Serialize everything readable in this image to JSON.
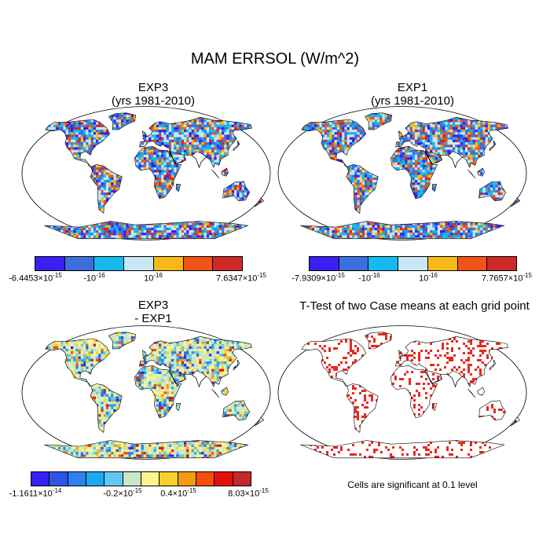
{
  "title": "MAM ERRSOL (W/m^2)",
  "panels": [
    {
      "title_line1": "EXP3",
      "title_line2": "(yrs 1981-2010)",
      "colors": [
        "#3a1ff3",
        "#3b6fdc",
        "#15b9ee",
        "#c9e6f5",
        "#f7b91a",
        "#f1541a",
        "#cc2a2a"
      ],
      "tick_left": {
        "mant": "-6.4453",
        "exp": "-15"
      },
      "tick_m1": {
        "mant": "-10",
        "exp": "-16"
      },
      "tick_m2": {
        "mant": "10",
        "exp": "-16"
      },
      "tick_right": {
        "mant": "7.6347",
        "exp": "-15"
      }
    },
    {
      "title_line1": "EXP1",
      "title_line2": "(yrs 1981-2010)",
      "colors": [
        "#3a1ff3",
        "#3b6fdc",
        "#15b9ee",
        "#c9e6f5",
        "#f7b91a",
        "#f1541a",
        "#cc2a2a"
      ],
      "tick_left": {
        "mant": "-7.9309",
        "exp": "-15"
      },
      "tick_m1": {
        "mant": "-10",
        "exp": "-16"
      },
      "tick_m2": {
        "mant": "10",
        "exp": "-16"
      },
      "tick_right": {
        "mant": "7.7657",
        "exp": "-15"
      }
    },
    {
      "title_line1": "EXP3",
      "title_line2": "- EXP1",
      "colors": [
        "#3a1ff3",
        "#2d55e4",
        "#2a82f0",
        "#1aa8f0",
        "#62c8f3",
        "#c7e9c8",
        "#fff48c",
        "#f8cf2c",
        "#f59b13",
        "#f24f0c",
        "#e50f0f",
        "#c62828"
      ],
      "tick_left": {
        "mant": "-1.1611",
        "exp": "-14"
      },
      "tick_m1": {
        "mant": "-0.2",
        "exp": "-15"
      },
      "tick_m2": {
        "mant": "0.4",
        "exp": "-15"
      },
      "tick_right": {
        "mant": "8.03",
        "exp": "-15"
      }
    },
    {
      "title_line1": "T-Test of two Case means at each grid point",
      "note": "Cells are significant at 0.1 level"
    }
  ],
  "tick_multiply": "×10"
}
